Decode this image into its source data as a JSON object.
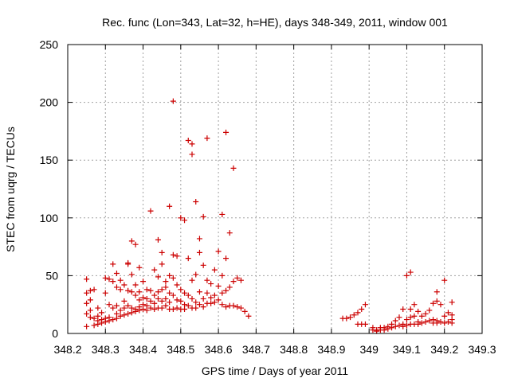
{
  "chart_data": {
    "type": "scatter",
    "title": "Rec. func (Lon=343, Lat=32, h=HE), days 348-349, 2011, window 001",
    "xlabel": "GPS time / Days of year 2011",
    "ylabel": "STEC from uqrg / TECUs",
    "xlim": [
      348.2,
      349.3
    ],
    "ylim": [
      0,
      250
    ],
    "x_ticks": [
      348.2,
      348.3,
      348.4,
      348.5,
      348.6,
      348.7,
      348.8,
      348.9,
      349,
      349.1,
      349.2,
      349.3
    ],
    "x_tick_labels": [
      "348.2",
      "348.3",
      "348.4",
      "348.5",
      "348.6",
      "348.7",
      "348.8",
      "348.9",
      "349",
      "349.1",
      "349.2",
      "349.3"
    ],
    "y_ticks": [
      0,
      50,
      100,
      150,
      200,
      250
    ],
    "y_tick_labels": [
      "0",
      "50",
      "100",
      "150",
      "200",
      "250"
    ],
    "grid": true,
    "marker": "plus",
    "color": "#cc0000",
    "points": [
      [
        348.25,
        47
      ],
      [
        348.25,
        35
      ],
      [
        348.25,
        26
      ],
      [
        348.25,
        17
      ],
      [
        348.25,
        6
      ],
      [
        348.26,
        37
      ],
      [
        348.26,
        29
      ],
      [
        348.26,
        20
      ],
      [
        348.26,
        14
      ],
      [
        348.27,
        38
      ],
      [
        348.27,
        13
      ],
      [
        348.27,
        7
      ],
      [
        348.28,
        22
      ],
      [
        348.28,
        15
      ],
      [
        348.28,
        11
      ],
      [
        348.28,
        8
      ],
      [
        348.29,
        18
      ],
      [
        348.29,
        12
      ],
      [
        348.29,
        9
      ],
      [
        348.3,
        48
      ],
      [
        348.3,
        35
      ],
      [
        348.3,
        13
      ],
      [
        348.3,
        10
      ],
      [
        348.31,
        47
      ],
      [
        348.31,
        25
      ],
      [
        348.31,
        14
      ],
      [
        348.31,
        11
      ],
      [
        348.32,
        60
      ],
      [
        348.32,
        45
      ],
      [
        348.32,
        22
      ],
      [
        348.32,
        12
      ],
      [
        348.33,
        52
      ],
      [
        348.33,
        40
      ],
      [
        348.33,
        24
      ],
      [
        348.33,
        17
      ],
      [
        348.33,
        13
      ],
      [
        348.34,
        46
      ],
      [
        348.34,
        38
      ],
      [
        348.34,
        20
      ],
      [
        348.34,
        15
      ],
      [
        348.35,
        42
      ],
      [
        348.35,
        28
      ],
      [
        348.35,
        22
      ],
      [
        348.35,
        16
      ],
      [
        348.36,
        61
      ],
      [
        348.36,
        60
      ],
      [
        348.36,
        37
      ],
      [
        348.36,
        24
      ],
      [
        348.36,
        17
      ],
      [
        348.37,
        80
      ],
      [
        348.37,
        51
      ],
      [
        348.37,
        36
      ],
      [
        348.37,
        22
      ],
      [
        348.37,
        18
      ],
      [
        348.38,
        77
      ],
      [
        348.38,
        42
      ],
      [
        348.38,
        33
      ],
      [
        348.38,
        21
      ],
      [
        348.38,
        19
      ],
      [
        348.39,
        57
      ],
      [
        348.39,
        36
      ],
      [
        348.39,
        29
      ],
      [
        348.39,
        23
      ],
      [
        348.39,
        20
      ],
      [
        348.4,
        45
      ],
      [
        348.4,
        31
      ],
      [
        348.4,
        25
      ],
      [
        348.4,
        21
      ],
      [
        348.41,
        38
      ],
      [
        348.41,
        30
      ],
      [
        348.41,
        24
      ],
      [
        348.41,
        20
      ],
      [
        348.42,
        106
      ],
      [
        348.42,
        37
      ],
      [
        348.42,
        28
      ],
      [
        348.42,
        22
      ],
      [
        348.43,
        55
      ],
      [
        348.43,
        33
      ],
      [
        348.43,
        26
      ],
      [
        348.43,
        21
      ],
      [
        348.44,
        81
      ],
      [
        348.44,
        49
      ],
      [
        348.44,
        36
      ],
      [
        348.44,
        30
      ],
      [
        348.44,
        22
      ],
      [
        348.45,
        70
      ],
      [
        348.45,
        60
      ],
      [
        348.45,
        38
      ],
      [
        348.45,
        28
      ],
      [
        348.45,
        22
      ],
      [
        348.46,
        45
      ],
      [
        348.46,
        40
      ],
      [
        348.46,
        30
      ],
      [
        348.46,
        24
      ],
      [
        348.47,
        110
      ],
      [
        348.47,
        50
      ],
      [
        348.47,
        35
      ],
      [
        348.47,
        27
      ],
      [
        348.47,
        21
      ],
      [
        348.48,
        201
      ],
      [
        348.48,
        68
      ],
      [
        348.48,
        48
      ],
      [
        348.48,
        33
      ],
      [
        348.48,
        21
      ],
      [
        348.49,
        67
      ],
      [
        348.49,
        42
      ],
      [
        348.49,
        29
      ],
      [
        348.49,
        22
      ],
      [
        348.5,
        100
      ],
      [
        348.5,
        38
      ],
      [
        348.5,
        28
      ],
      [
        348.5,
        21
      ],
      [
        348.51,
        98
      ],
      [
        348.51,
        35
      ],
      [
        348.51,
        25
      ],
      [
        348.51,
        21
      ],
      [
        348.52,
        167
      ],
      [
        348.52,
        65
      ],
      [
        348.52,
        33
      ],
      [
        348.52,
        24
      ],
      [
        348.53,
        164
      ],
      [
        348.53,
        155
      ],
      [
        348.53,
        46
      ],
      [
        348.53,
        30
      ],
      [
        348.53,
        22
      ],
      [
        348.54,
        114
      ],
      [
        348.54,
        51
      ],
      [
        348.54,
        27
      ],
      [
        348.54,
        22
      ],
      [
        348.55,
        82
      ],
      [
        348.55,
        70
      ],
      [
        348.55,
        36
      ],
      [
        348.55,
        25
      ],
      [
        348.56,
        101
      ],
      [
        348.56,
        59
      ],
      [
        348.56,
        30
      ],
      [
        348.56,
        23
      ],
      [
        348.57,
        169
      ],
      [
        348.57,
        46
      ],
      [
        348.57,
        35
      ],
      [
        348.57,
        26
      ],
      [
        348.58,
        43
      ],
      [
        348.58,
        31
      ],
      [
        348.58,
        26
      ],
      [
        348.59,
        55
      ],
      [
        348.59,
        33
      ],
      [
        348.59,
        27
      ],
      [
        348.6,
        71
      ],
      [
        348.6,
        41
      ],
      [
        348.6,
        29
      ],
      [
        348.61,
        103
      ],
      [
        348.61,
        50
      ],
      [
        348.61,
        35
      ],
      [
        348.61,
        25
      ],
      [
        348.62,
        174
      ],
      [
        348.62,
        65
      ],
      [
        348.62,
        37
      ],
      [
        348.62,
        23
      ],
      [
        348.63,
        87
      ],
      [
        348.63,
        40
      ],
      [
        348.63,
        24
      ],
      [
        348.64,
        143
      ],
      [
        348.64,
        45
      ],
      [
        348.64,
        24
      ],
      [
        348.65,
        48
      ],
      [
        348.65,
        23
      ],
      [
        348.66,
        46
      ],
      [
        348.66,
        22
      ],
      [
        348.67,
        19
      ],
      [
        348.68,
        15
      ],
      [
        348.93,
        13
      ],
      [
        348.94,
        13
      ],
      [
        348.95,
        14
      ],
      [
        348.96,
        16
      ],
      [
        348.97,
        18
      ],
      [
        348.97,
        8
      ],
      [
        348.98,
        21
      ],
      [
        348.98,
        8
      ],
      [
        348.99,
        25
      ],
      [
        348.99,
        8
      ],
      [
        349.01,
        5
      ],
      [
        349.01,
        3
      ],
      [
        349.02,
        3
      ],
      [
        349.02,
        2
      ],
      [
        349.03,
        5
      ],
      [
        349.03,
        3
      ],
      [
        349.04,
        5
      ],
      [
        349.04,
        3
      ],
      [
        349.05,
        6
      ],
      [
        349.05,
        4
      ],
      [
        349.06,
        8
      ],
      [
        349.06,
        5
      ],
      [
        349.07,
        11
      ],
      [
        349.07,
        6
      ],
      [
        349.08,
        14
      ],
      [
        349.08,
        7
      ],
      [
        349.09,
        21
      ],
      [
        349.09,
        8
      ],
      [
        349.09,
        6
      ],
      [
        349.1,
        50
      ],
      [
        349.1,
        12
      ],
      [
        349.1,
        7
      ],
      [
        349.11,
        53
      ],
      [
        349.11,
        21
      ],
      [
        349.11,
        14
      ],
      [
        349.11,
        8
      ],
      [
        349.12,
        25
      ],
      [
        349.12,
        15
      ],
      [
        349.12,
        8
      ],
      [
        349.13,
        19
      ],
      [
        349.13,
        10
      ],
      [
        349.13,
        8
      ],
      [
        349.14,
        15
      ],
      [
        349.14,
        9
      ],
      [
        349.15,
        17
      ],
      [
        349.15,
        10
      ],
      [
        349.16,
        20
      ],
      [
        349.16,
        11
      ],
      [
        349.17,
        26
      ],
      [
        349.17,
        12
      ],
      [
        349.17,
        9
      ],
      [
        349.18,
        36
      ],
      [
        349.18,
        28
      ],
      [
        349.18,
        11
      ],
      [
        349.18,
        9
      ],
      [
        349.19,
        25
      ],
      [
        349.19,
        10
      ],
      [
        349.2,
        46
      ],
      [
        349.2,
        15
      ],
      [
        349.2,
        9
      ],
      [
        349.21,
        18
      ],
      [
        349.21,
        10
      ],
      [
        349.22,
        27
      ],
      [
        349.22,
        16
      ],
      [
        349.22,
        12
      ],
      [
        349.22,
        9
      ]
    ]
  }
}
